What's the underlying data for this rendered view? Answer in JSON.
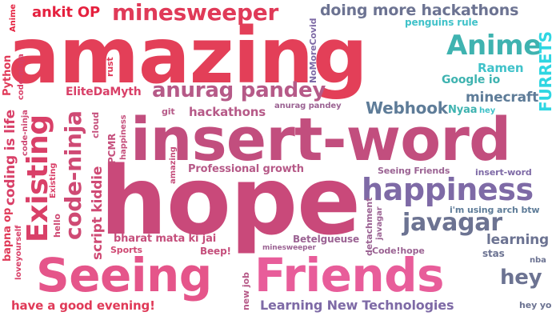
{
  "words": {
    "amazing": "amazing",
    "insert_word": "insert-word",
    "hope": "hope",
    "seeing_friends_1": "Seeing",
    "seeing_friends_2": "Friends",
    "minesweeper": "minesweeper",
    "ankit_op": "ankit OP",
    "doing_more_hackathons": "doing more hackathons",
    "penguins_rule": "penguins rule",
    "anime": "Anime",
    "anime_small": "Anime",
    "furrets": "FURRETS",
    "ramen": "Ramen",
    "google_io": "Google io",
    "minecraft": "minecraft",
    "nyaa": "Nyaa",
    "hey_small": "hey",
    "webhook": "Webhook",
    "anurag_pandey": "anurag pandey",
    "anurag_pandey_small": "anurag pandey",
    "elitedamyth": "EliteDaMyth",
    "python": "Python",
    "rust": "rust",
    "nomorecovid": "NoMoreCovid",
    "code_ninja_small": "code-ninja",
    "coding_is_life": "coding is life",
    "existing": "Existing",
    "existing_small": "Existing",
    "code_ninja": "code-ninja",
    "script_kiddie": "script kiddie",
    "pcmr": "PCMR",
    "cloud": "cloud",
    "happiness_small": "happiness",
    "git": "git",
    "hackathons": "hackathons",
    "amazing_small": "amazing",
    "professional_growth": "Professional growth",
    "seeing_friends_small": "Seeing Friends",
    "insert_word_small": "insert-word",
    "happiness": "happiness",
    "javagar": "javagar",
    "javagar_small": "javagar",
    "im_using_arch": "i'm using arch btw",
    "learning": "learning",
    "stas": "stas",
    "nba": "nba",
    "hey": "hey",
    "hey_yo": "hey yo",
    "bharat_mata": "bharat mata ki jai",
    "sports": "Sports",
    "beep": "Beep!",
    "betelgueuse": "Betelgueuse",
    "minesweeper_small": "minesweeper",
    "detachment": "detachment",
    "code_hope": "Code!hope",
    "new_job": "new job",
    "hello": "hello",
    "bapna_op": "bapna op",
    "loveyourself": "loveyourself",
    "have_a_good_evening": "have a good evening!",
    "learning_new_tech": "Learning New Technologies"
  },
  "colors": {
    "red": "#e5213f",
    "crimson": "#e03a58",
    "pink_red": "#d94068",
    "rose": "#cf4a74",
    "magenta": "#c54f7c",
    "mauve": "#b65a88",
    "plum": "#9b6393",
    "violet": "#7e6aa6",
    "slate": "#6c7392",
    "steel": "#5e7c98",
    "teal": "#3fb3b0",
    "turquoise": "#40c2c9",
    "cyan": "#2fd6e2",
    "hot_pink": "#e5558a",
    "bright_pink": "#e85d9a"
  }
}
